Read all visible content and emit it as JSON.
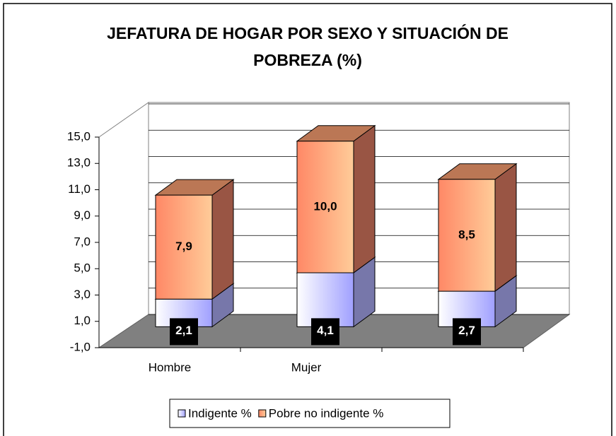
{
  "chart_data": {
    "type": "bar3d_stacked",
    "title": "JEFATURA DE HOGAR POR SEXO Y SITUACIÓN DE POBREZA (%)",
    "categories": [
      "Hombre",
      "Mujer",
      null
    ],
    "series": [
      {
        "name": "Indigente %",
        "color": "#a0a0ff",
        "values": [
          2.1,
          4.1,
          2.7
        ],
        "value_labels": [
          "2,1",
          "4,1",
          "2,7"
        ]
      },
      {
        "name": "Pobre no indigente %",
        "color": "#ff9966",
        "values": [
          7.9,
          10.0,
          8.5
        ],
        "value_labels": [
          "7,9",
          "10,0",
          "8,5"
        ]
      }
    ],
    "ylim": [
      -1,
      15
    ],
    "yticks": [
      {
        "value": -1,
        "label": "-1,0"
      },
      {
        "value": 1,
        "label": "1,0"
      },
      {
        "value": 3,
        "label": "3,0"
      },
      {
        "value": 5,
        "label": "5,0"
      },
      {
        "value": 7,
        "label": "7,0"
      },
      {
        "value": 9,
        "label": "9,0"
      },
      {
        "value": 11,
        "label": "11,0"
      },
      {
        "value": 13,
        "label": "13,0"
      },
      {
        "value": 15,
        "label": "15,0"
      }
    ],
    "grid": true
  }
}
